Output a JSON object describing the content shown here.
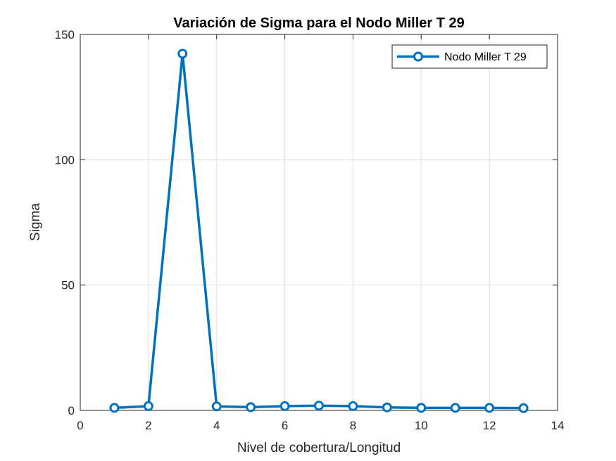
{
  "chart_data": {
    "type": "line",
    "title": "Variación de Sigma para el Nodo Miller T 29",
    "xlabel": "Nivel de cobertura/Longitud",
    "ylabel": "Sigma",
    "xlim": [
      0,
      14
    ],
    "ylim": [
      0,
      150
    ],
    "xticks": [
      0,
      2,
      4,
      6,
      8,
      10,
      12,
      14
    ],
    "yticks": [
      0,
      50,
      100,
      150
    ],
    "grid": true,
    "legend_position": "top-right",
    "series": [
      {
        "name": "Nodo Miller T 29",
        "color": "#0072BD",
        "marker": "circle",
        "x": [
          1,
          2,
          3,
          4,
          5,
          6,
          7,
          8,
          9,
          10,
          11,
          12,
          13
        ],
        "y": [
          1.0,
          1.7,
          142.3,
          1.6,
          1.3,
          1.7,
          1.9,
          1.7,
          1.2,
          1.0,
          1.0,
          1.0,
          0.9
        ]
      }
    ]
  }
}
